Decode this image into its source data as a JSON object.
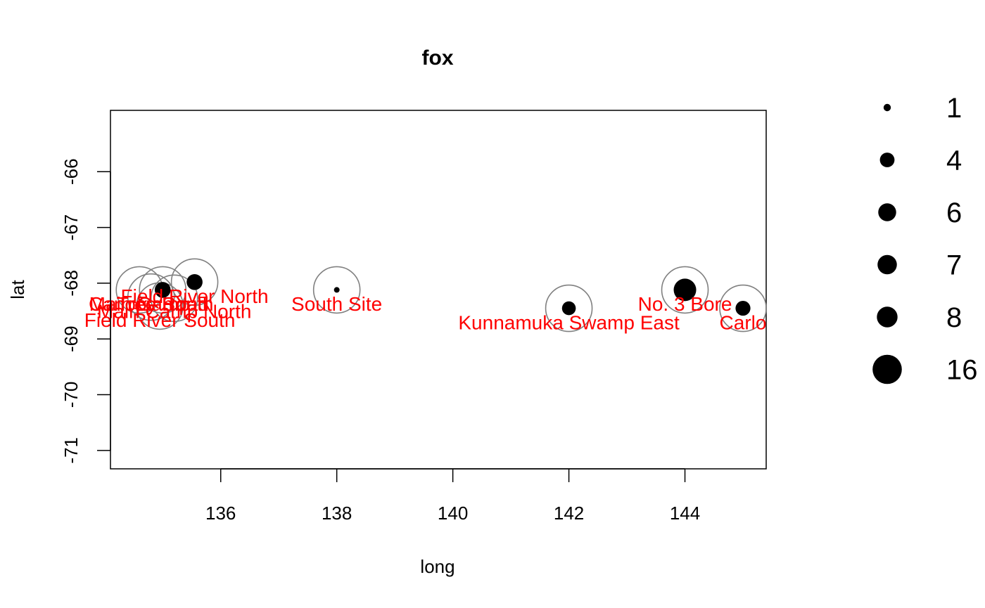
{
  "chart_data": {
    "type": "scatter",
    "title": "fox",
    "xlabel": "long",
    "ylabel": "lat",
    "xlim": [
      134.1,
      145.4
    ],
    "ylim": [
      -71.33,
      -64.9
    ],
    "x_ticks": [
      136,
      138,
      140,
      142,
      144
    ],
    "y_ticks": [
      -71,
      -70,
      -69,
      -68,
      -67,
      -66
    ],
    "grid": false,
    "legend_position": "right",
    "colors": {
      "points": "#000000",
      "rings": "#808080",
      "labels": "#ff0000"
    },
    "points": [
      {
        "site": "Main Camp",
        "long": 134.6,
        "lat": -68.12,
        "count": 0
      },
      {
        "site": "Canopy South",
        "long": 134.8,
        "lat": -68.25,
        "count": 0
      },
      {
        "site": "Tree Road",
        "long": 135.0,
        "lat": -68.12,
        "count": 8
      },
      {
        "site": "Main Camp North",
        "long": 135.2,
        "lat": -68.27,
        "count": 0
      },
      {
        "site": "Field River North",
        "long": 135.55,
        "lat": -67.98,
        "count": 8
      },
      {
        "site": "Field River South",
        "long": 134.95,
        "lat": -68.41,
        "count": 0
      },
      {
        "site": "South Site",
        "long": 138.0,
        "lat": -68.12,
        "count": 1
      },
      {
        "site": "Kunnamuka Swamp East",
        "long": 142.0,
        "lat": -68.45,
        "count": 6
      },
      {
        "site": "No. 3 Bore",
        "long": 144.0,
        "lat": -68.12,
        "count": 16
      },
      {
        "site": "Carlo",
        "long": 145.0,
        "lat": -68.45,
        "count": 7
      }
    ],
    "site_labels": [
      {
        "text": "Main Camp",
        "long": 134.6,
        "lat": -68.37
      },
      {
        "text": "Canopy South",
        "long": 134.8,
        "lat": -68.37
      },
      {
        "text": "Tree Road",
        "long": 135.0,
        "lat": -68.37
      },
      {
        "text": "Main Camp North",
        "long": 135.2,
        "lat": -68.5
      },
      {
        "text": "Field River North",
        "long": 135.55,
        "lat": -68.23
      },
      {
        "text": "Field River South",
        "long": 134.95,
        "lat": -68.66
      },
      {
        "text": "South Site",
        "long": 138.0,
        "lat": -68.37
      },
      {
        "text": "Kunnamuka Swamp East",
        "long": 142.0,
        "lat": -68.7
      },
      {
        "text": "No. 3 Bore",
        "long": 144.0,
        "lat": -68.37
      },
      {
        "text": "Carlo",
        "long": 145.0,
        "lat": -68.7
      }
    ],
    "legend": [
      {
        "label": "1",
        "value": 1
      },
      {
        "label": "4",
        "value": 4
      },
      {
        "label": "6",
        "value": 6
      },
      {
        "label": "7",
        "value": 7
      },
      {
        "label": "8",
        "value": 8
      },
      {
        "label": "16",
        "value": 16
      }
    ]
  }
}
